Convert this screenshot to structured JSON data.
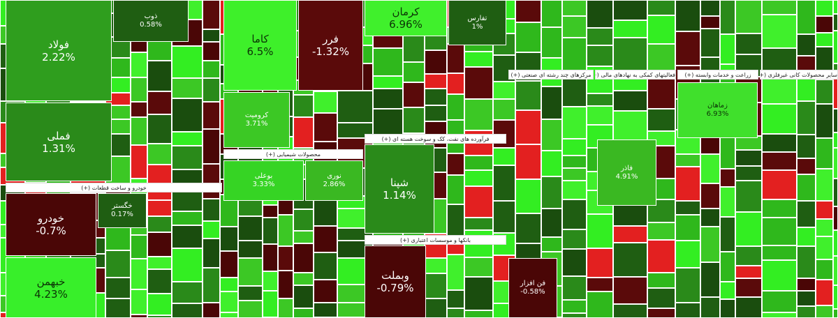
{
  "tiles": [
    {
      "label": "فولاد",
      "change": "2.22%"
    },
    {
      "label": "فملی",
      "change": "1.31%"
    },
    {
      "label": "ذوب",
      "change": "0.58%"
    },
    {
      "label": "خودرو",
      "change": "-0.7%"
    },
    {
      "label": "خبهمن",
      "change": "4.23%"
    },
    {
      "label": "خگستر",
      "change": "0.17%"
    },
    {
      "label": "کاما",
      "change": "6.5%"
    },
    {
      "label": "فرر",
      "change": "-1.32%"
    },
    {
      "label": "کرومیت",
      "change": "3.71%"
    },
    {
      "label": "بوعلی",
      "change": "3.33%"
    },
    {
      "label": "نوری",
      "change": "2.86%"
    },
    {
      "label": "کرمان",
      "change": "6.96%"
    },
    {
      "label": "تفارس",
      "change": "1%"
    },
    {
      "label": "شپنا",
      "change": "1.14%"
    },
    {
      "label": "وبملت",
      "change": "-0.79%"
    },
    {
      "label": "فن افزار",
      "change": "-0.58%"
    },
    {
      "label": "فاذر",
      "change": "4.91%"
    },
    {
      "label": "زماهان",
      "change": "6.93%"
    }
  ],
  "sectors": [
    "خودرو و ساخت قطعات (+)",
    "محصولات شیمیایی (+)",
    "فرآورده های نفت، کک و سوخت هسته ای (+)",
    "بانکها و موسسات اعتباری (+)",
    "مرکزهای چند رشته ای صنعتی (+)",
    "فعالیتهای کمکی به نهادهای مالی (+)",
    "زراعت و خدمات وابسته (+)",
    "سایر محصولات کانی غیرفلزی (+)"
  ]
}
